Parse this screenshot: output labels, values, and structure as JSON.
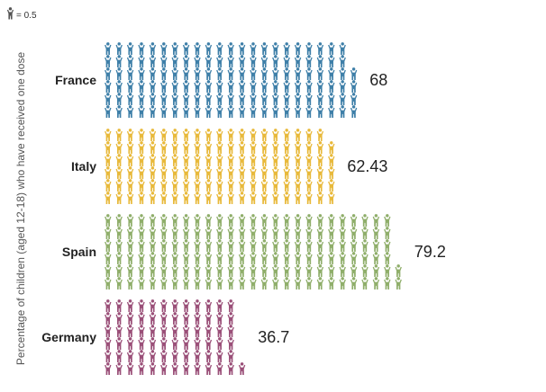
{
  "chart_data": {
    "type": "pictogram",
    "legend_key": "= 0.5",
    "unit_value": 0.5,
    "ylabel": "Percentage of children (aged 12-18) who have received one dose",
    "categories": [
      "France",
      "Italy",
      "Spain",
      "Germany"
    ],
    "values": [
      68,
      62.43,
      79.2,
      36.7
    ],
    "value_labels": [
      "68",
      "62.43",
      "79.2",
      "36.7"
    ],
    "colors": [
      "#3e7fa8",
      "#e8b93a",
      "#8fae6a",
      "#9a4f78"
    ],
    "icons_per_column": 6,
    "icon": "child-icon",
    "key_icon_color": "#555555"
  }
}
